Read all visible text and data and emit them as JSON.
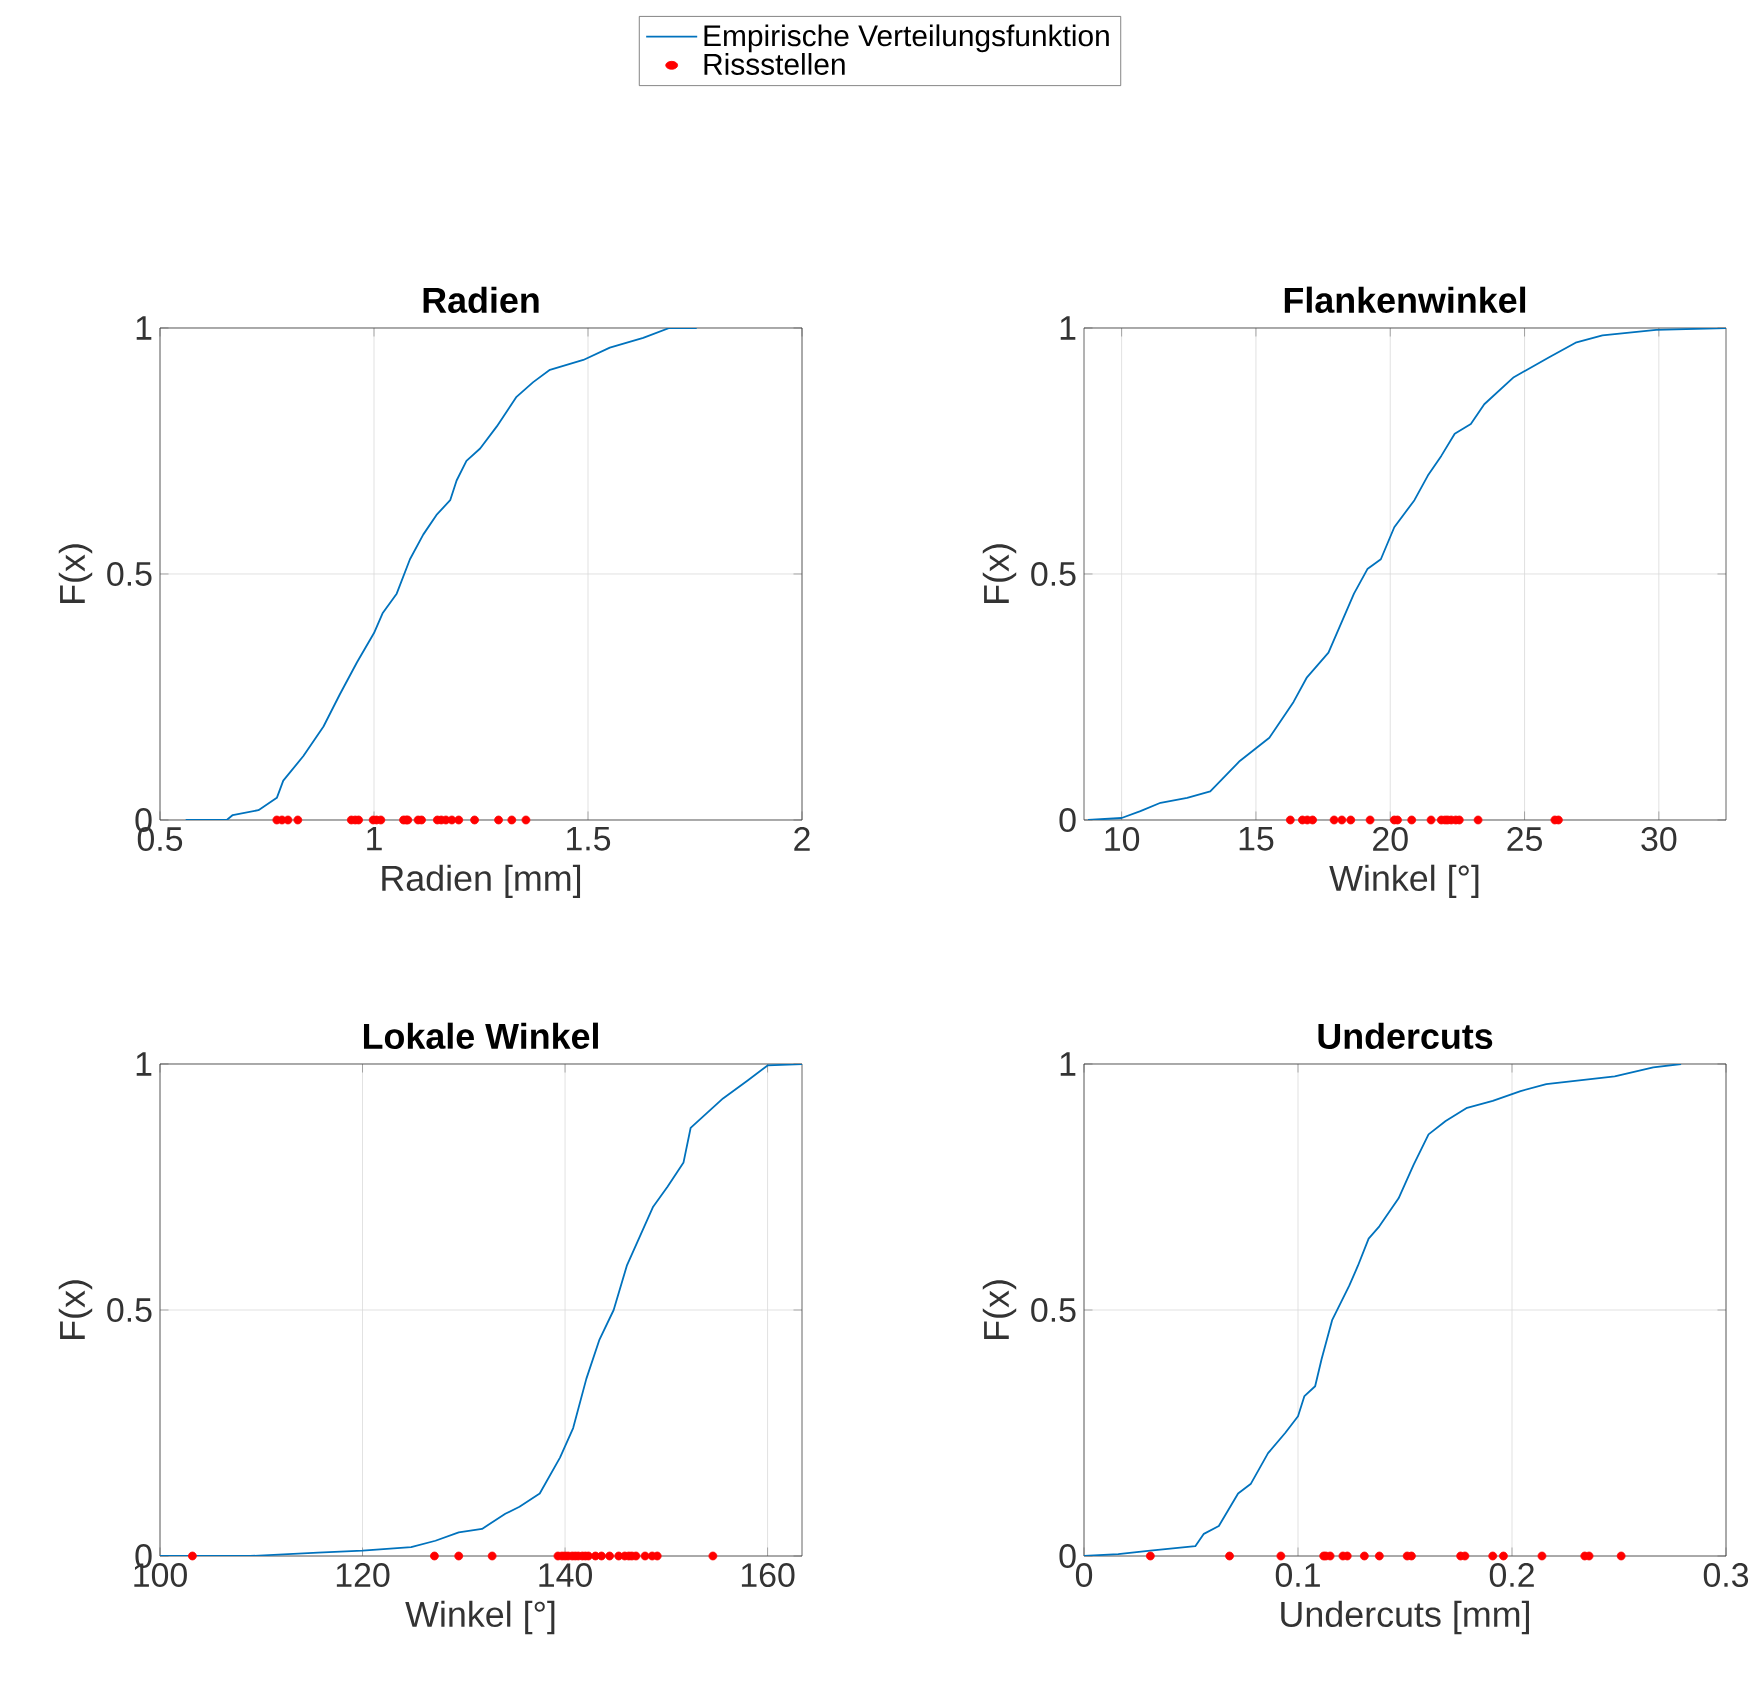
{
  "chart_data": [
    {
      "type": "line",
      "title": "Radien",
      "xlabel": "Radien [mm]",
      "ylabel": "F(x)",
      "xlim": [
        0.5,
        2
      ],
      "xticks": [
        0.5,
        1,
        1.5,
        2
      ],
      "ylim": [
        0,
        1
      ],
      "yticks": [
        0,
        0.5,
        1
      ],
      "grid": true,
      "legend": "top",
      "series": [
        {
          "name": "Empirische Verteilungsfunktion",
          "type": "line",
          "color": "#0072bd",
          "x": [
            0.56,
            0.656,
            0.67,
            0.73,
            0.773,
            0.788,
            0.835,
            0.882,
            0.92,
            0.96,
            1.0,
            1.02,
            1.053,
            1.084,
            1.115,
            1.146,
            1.178,
            1.193,
            1.216,
            1.248,
            1.287,
            1.333,
            1.372,
            1.411,
            1.489,
            1.551,
            1.629,
            1.69,
            1.754
          ],
          "values": [
            0,
            0,
            0.01,
            0.02,
            0.045,
            0.08,
            0.13,
            0.19,
            0.255,
            0.32,
            0.38,
            0.42,
            0.46,
            0.53,
            0.58,
            0.62,
            0.65,
            0.69,
            0.73,
            0.755,
            0.8,
            0.86,
            0.89,
            0.915,
            0.935,
            0.96,
            0.98,
            1,
            1
          ]
        },
        {
          "name": "Rissstellen",
          "type": "scatter",
          "color": "#ff0000",
          "x": [
            0.773,
            0.785,
            0.799,
            0.822,
            0.947,
            0.956,
            0.964,
            0.998,
            1.006,
            1.016,
            1.069,
            1.075,
            1.079,
            1.103,
            1.111,
            1.148,
            1.157,
            1.168,
            1.182,
            1.198,
            1.235,
            1.291,
            1.322,
            1.355
          ],
          "values": [
            0,
            0,
            0,
            0,
            0,
            0,
            0,
            0,
            0,
            0,
            0,
            0,
            0,
            0,
            0,
            0,
            0,
            0,
            0,
            0,
            0,
            0,
            0,
            0
          ]
        }
      ]
    },
    {
      "type": "line",
      "title": "Flankenwinkel",
      "xlabel": "Winkel [°]",
      "ylabel": "F(x)",
      "xlim": [
        8.6,
        32.5
      ],
      "xticks": [
        10,
        15,
        20,
        25,
        30
      ],
      "ylim": [
        0,
        1
      ],
      "yticks": [
        0,
        0.5,
        1
      ],
      "grid": true,
      "series": [
        {
          "type": "line",
          "color": "#0072bd",
          "x": [
            8.75,
            10,
            10.7,
            11.45,
            12.44,
            13.3,
            14.4,
            15.5,
            16.4,
            16.9,
            17.7,
            18.65,
            19.15,
            19.65,
            20.15,
            20.9,
            21.4,
            21.9,
            22.4,
            23.0,
            23.5,
            24.6,
            25.9,
            26.9,
            27.9,
            29.9,
            32.5
          ],
          "values": [
            0,
            0.004,
            0.018,
            0.035,
            0.045,
            0.058,
            0.12,
            0.167,
            0.24,
            0.29,
            0.34,
            0.46,
            0.51,
            0.53,
            0.595,
            0.65,
            0.7,
            0.74,
            0.785,
            0.805,
            0.845,
            0.9,
            0.94,
            0.97,
            0.985,
            0.996,
            1
          ]
        },
        {
          "type": "scatter",
          "color": "#ff0000",
          "x": [
            16.28,
            16.73,
            16.91,
            17.11,
            17.91,
            18.2,
            18.53,
            19.25,
            20.15,
            20.27,
            20.8,
            21.52,
            21.9,
            22.04,
            22.14,
            22.27,
            22.44,
            22.57,
            23.27,
            26.13,
            26.26
          ],
          "values": [
            0,
            0,
            0,
            0,
            0,
            0,
            0,
            0,
            0,
            0,
            0,
            0,
            0,
            0,
            0,
            0,
            0,
            0,
            0,
            0,
            0
          ]
        }
      ]
    },
    {
      "type": "line",
      "title": "Lokale Winkel",
      "xlabel": "Winkel [°]",
      "ylabel": "F(x)",
      "xlim": [
        100,
        163.4
      ],
      "xticks": [
        100,
        120,
        140,
        160
      ],
      "ylim": [
        0,
        1
      ],
      "yticks": [
        0,
        0.5,
        1
      ],
      "grid": true,
      "series": [
        {
          "type": "line",
          "color": "#0072bd",
          "x": [
            100,
            108.9,
            115.6,
            120,
            124.8,
            127.2,
            129.5,
            131.8,
            134.1,
            135.5,
            137.5,
            139.5,
            140.8,
            142.1,
            143.4,
            144.8,
            146.1,
            147.4,
            148.7,
            150.1,
            151.7,
            152.4,
            154.0,
            155.6,
            158.0,
            160,
            163.4
          ],
          "values": [
            0,
            0,
            0.007,
            0.011,
            0.018,
            0.031,
            0.048,
            0.055,
            0.086,
            0.1,
            0.127,
            0.2,
            0.26,
            0.36,
            0.44,
            0.5,
            0.59,
            0.65,
            0.71,
            0.75,
            0.8,
            0.87,
            0.9,
            0.93,
            0.966,
            0.997,
            1
          ]
        },
        {
          "type": "scatter",
          "color": "#ff0000",
          "x": [
            103.2,
            127.1,
            129.5,
            132.8,
            139.3,
            139.7,
            140.0,
            140.3,
            140.7,
            141.0,
            141.3,
            141.7,
            142.0,
            142.3,
            143.0,
            143.6,
            144.4,
            145.3,
            145.9,
            146.3,
            146.6,
            147.0,
            147.9,
            148.6,
            149.1,
            154.6
          ],
          "values": [
            0,
            0,
            0,
            0,
            0,
            0,
            0,
            0,
            0,
            0,
            0,
            0,
            0,
            0,
            0,
            0,
            0,
            0,
            0,
            0,
            0,
            0,
            0,
            0,
            0,
            0
          ]
        }
      ]
    },
    {
      "type": "line",
      "title": "Undercuts",
      "xlabel": "Undercuts [mm]",
      "ylabel": "F(x)",
      "xlim": [
        0,
        0.3
      ],
      "xticks": [
        0,
        0.1,
        0.2,
        0.3
      ],
      "ylim": [
        0,
        1
      ],
      "yticks": [
        0,
        0.5,
        1
      ],
      "grid": true,
      "series": [
        {
          "type": "line",
          "color": "#0072bd",
          "x": [
            0,
            0.016,
            0.031,
            0.052,
            0.056,
            0.063,
            0.072,
            0.078,
            0.086,
            0.094,
            0.1,
            0.103,
            0.108,
            0.111,
            0.116,
            0.124,
            0.128,
            0.133,
            0.138,
            0.147,
            0.154,
            0.161,
            0.169,
            0.179,
            0.191,
            0.204,
            0.216,
            0.248,
            0.266,
            0.279
          ],
          "values": [
            0,
            0.004,
            0.011,
            0.02,
            0.045,
            0.061,
            0.127,
            0.147,
            0.209,
            0.25,
            0.284,
            0.325,
            0.345,
            0.4,
            0.48,
            0.55,
            0.59,
            0.645,
            0.67,
            0.727,
            0.795,
            0.857,
            0.884,
            0.911,
            0.925,
            0.945,
            0.959,
            0.975,
            0.993,
            1
          ]
        },
        {
          "type": "scatter",
          "color": "#ff0000",
          "x": [
            0.031,
            0.068,
            0.092,
            0.112,
            0.113,
            0.115,
            0.121,
            0.123,
            0.131,
            0.138,
            0.151,
            0.153,
            0.176,
            0.178,
            0.191,
            0.196,
            0.214,
            0.234,
            0.236,
            0.251
          ],
          "values": [
            0,
            0,
            0,
            0,
            0,
            0,
            0,
            0,
            0,
            0,
            0,
            0,
            0,
            0,
            0,
            0,
            0,
            0,
            0,
            0
          ]
        }
      ]
    }
  ]
}
